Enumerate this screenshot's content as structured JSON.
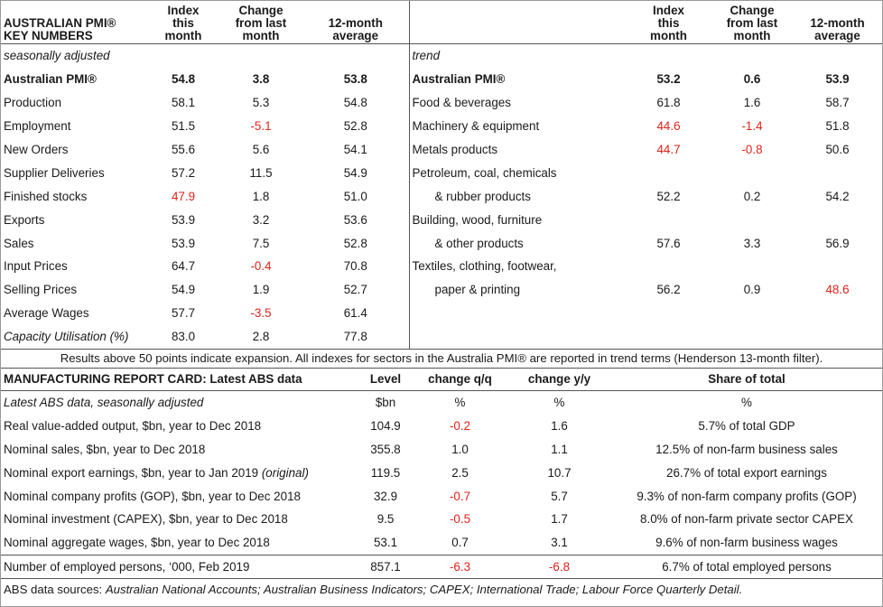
{
  "pmi": {
    "left_header": {
      "title_line1": "AUSTRALIAN PMI®",
      "title_line2": "KEY NUMBERS"
    },
    "col_headers": {
      "index_l1": "Index",
      "index_l2": "this",
      "index_l3": "month",
      "change_l1": "Change",
      "change_l2": "from last",
      "change_l3": "month",
      "avg_l1": "12-month",
      "avg_l2": "average"
    },
    "left_sub": "seasonally adjusted",
    "right_sub": "trend",
    "rows": [
      {
        "l": "Australian PMI®",
        "li": "54.8",
        "lc": "3.8",
        "la": "53.8",
        "r": "Australian PMI®",
        "ri": "53.2",
        "rc": "0.6",
        "ra": "53.9"
      },
      {
        "l": "Production",
        "li": "58.1",
        "lc": "5.3",
        "la": "54.8",
        "r": "Food & beverages",
        "ri": "61.8",
        "rc": "1.6",
        "ra": "58.7"
      },
      {
        "l": "Employment",
        "li": "51.5",
        "lc": "-5.1",
        "la": "52.8",
        "r": "Machinery & equipment",
        "ri": "44.6",
        "rc": "-1.4",
        "ra": "51.8"
      },
      {
        "l": "New Orders",
        "li": "55.6",
        "lc": "5.6",
        "la": "54.1",
        "r": "Metals products",
        "ri": "44.7",
        "rc": "-0.8",
        "ra": "50.6"
      },
      {
        "l": "Supplier Deliveries",
        "li": "57.2",
        "lc": "11.5",
        "la": "54.9",
        "r": "Petroleum, coal, chemicals",
        "ri": "",
        "rc": "",
        "ra": ""
      },
      {
        "l": "Finished stocks",
        "li": "47.9",
        "lc": "1.8",
        "la": "51.0",
        "r": "& rubber products",
        "ri": "52.2",
        "rc": "0.2",
        "ra": "54.2"
      },
      {
        "l": "Exports",
        "li": "53.9",
        "lc": "3.2",
        "la": "53.6",
        "r": "Building, wood, furniture",
        "ri": "",
        "rc": "",
        "ra": ""
      },
      {
        "l": "Sales",
        "li": "53.9",
        "lc": "7.5",
        "la": "52.8",
        "r": "& other products",
        "ri": "57.6",
        "rc": "3.3",
        "ra": "56.9"
      },
      {
        "l": "Input Prices",
        "li": "64.7",
        "lc": "-0.4",
        "la": "70.8",
        "r": "Textiles, clothing, footwear,",
        "ri": "",
        "rc": "",
        "ra": ""
      },
      {
        "l": "Selling Prices",
        "li": "54.9",
        "lc": "1.9",
        "la": "52.7",
        "r": "paper & printing",
        "ri": "56.2",
        "rc": "0.9",
        "ra": "48.6"
      },
      {
        "l": "Average Wages",
        "li": "57.7",
        "lc": "-3.5",
        "la": "61.4",
        "r": "",
        "ri": "",
        "rc": "",
        "ra": ""
      },
      {
        "l": "Capacity Utilisation (%)",
        "li": "83.0",
        "lc": "2.8",
        "la": "77.8",
        "r": "",
        "ri": "",
        "rc": "",
        "ra": ""
      }
    ],
    "note": "Results above 50 points indicate expansion. All indexes for sectors in the Australia PMI® are reported in trend terms (Henderson 13-month filter)."
  },
  "card": {
    "headers": {
      "title": "MANUFACTURING REPORT CARD: Latest ABS data",
      "level": "Level",
      "qq": "change q/q",
      "yy": "change y/y",
      "share": "Share of total"
    },
    "subrow": {
      "label": "Latest ABS data, seasonally adjusted",
      "level": "$bn",
      "qq": "%",
      "yy": "%",
      "share": "%"
    },
    "rows": [
      {
        "label": "Real value-added output, $bn, year to Dec 2018",
        "suffix": "",
        "level": "104.9",
        "qq": "-0.2",
        "yy": "1.6",
        "share": "5.7% of total GDP"
      },
      {
        "label": "Nominal sales, $bn, year to Dec 2018",
        "suffix": "",
        "level": "355.8",
        "qq": "1.0",
        "yy": "1.1",
        "share": "12.5% of non-farm business sales"
      },
      {
        "label": "Nominal export earnings, $bn, year to Jan 2019 ",
        "suffix": "(original)",
        "level": "119.5",
        "qq": "2.5",
        "yy": "10.7",
        "share": "26.7% of total export earnings"
      },
      {
        "label": "Nominal company profits (GOP), $bn, year to Dec 2018",
        "suffix": "",
        "level": "32.9",
        "qq": "-0.7",
        "yy": "5.7",
        "share": "9.3% of non-farm company profits (GOP)"
      },
      {
        "label": "Nominal investment (CAPEX), $bn, year to Dec 2018",
        "suffix": "",
        "level": "9.5",
        "qq": "-0.5",
        "yy": "1.7",
        "share": "8.0% of non-farm private sector CAPEX"
      },
      {
        "label": "Nominal aggregate wages, $bn, year to Dec 2018",
        "suffix": "",
        "level": "53.1",
        "qq": "0.7",
        "yy": "3.1",
        "share": "9.6% of non-farm business wages"
      },
      {
        "label": "Number of employed persons, ‘000, Feb 2019",
        "suffix": "",
        "level": "857.1",
        "qq": "-6.3",
        "yy": "-6.8",
        "share": "6.7% of total employed persons"
      }
    ]
  },
  "sources": {
    "label": "ABS data sources: ",
    "text": "Australian National Accounts; Australian Business Indicators; CAPEX; International Trade; Labour Force Quarterly Detail."
  },
  "colors": {
    "negative": "#e0231a",
    "rule": "#555555"
  }
}
